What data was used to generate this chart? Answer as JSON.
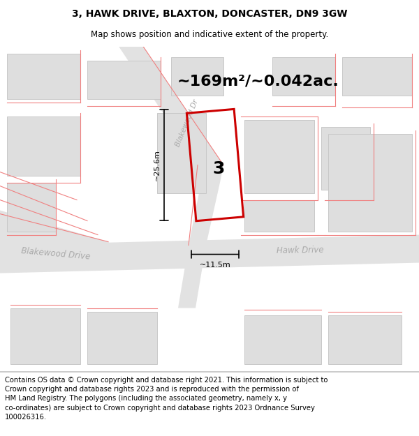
{
  "title": "3, HAWK DRIVE, BLAXTON, DONCASTER, DN9 3GW",
  "subtitle": "Map shows position and indicative extent of the property.",
  "area_text": "~169m²/~0.042ac.",
  "number_label": "3",
  "dim_width": "~11.5m",
  "dim_height": "~25.6m",
  "footer": "Contains OS data © Crown copyright and database right 2021. This information is subject to\nCrown copyright and database rights 2023 and is reproduced with the permission of\nHM Land Registry. The polygons (including the associated geometry, namely x, y\nco-ordinates) are subject to Crown copyright and database rights 2023 Ordnance Survey\n100026316.",
  "title_fontsize": 10,
  "subtitle_fontsize": 8.5,
  "area_fontsize": 16,
  "number_fontsize": 18,
  "dim_fontsize": 8,
  "footer_fontsize": 7.2,
  "map_bg": "#efefef",
  "building_fill": "#dedede",
  "building_edge": "#c8c8c8",
  "road_fill": "#e8e8e8",
  "red_line_color": "#f08080",
  "property_color": "#cc0000",
  "street_label_color": "#aaaaaa"
}
